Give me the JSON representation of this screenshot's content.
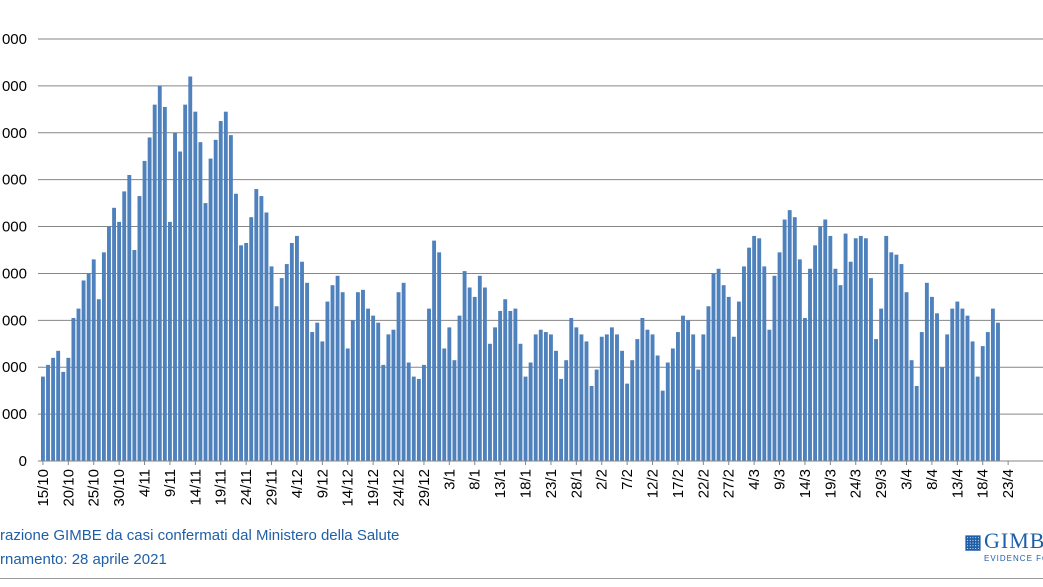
{
  "footer": {
    "source": "razione GIMBE da casi confermati dal Ministero della Salute",
    "updated": "rnamento: 28 aprile 2021"
  },
  "logo": {
    "name": "GIMB",
    "tagline": "EVIDENCE FOR H",
    "icon": "grid-logo-icon"
  },
  "colors": {
    "bar": "#4f81bd",
    "grid": "#868686",
    "text": "#000000",
    "footer": "#1f5fa8"
  },
  "chart_data": {
    "type": "bar",
    "title": "",
    "xlabel": "",
    "ylabel": "",
    "ylim": [
      0,
      9000
    ],
    "y_ticks": [
      0,
      1000,
      2000,
      3000,
      4000,
      5000,
      6000,
      7000,
      8000,
      9000
    ],
    "y_tick_labels": [
      "0",
      "000",
      "000",
      "000",
      "000",
      "000",
      "000",
      "000",
      "000",
      "000"
    ],
    "grid": true,
    "x_tick_labels": [
      "15/10",
      "20/10",
      "25/10",
      "30/10",
      "4/11",
      "9/11",
      "14/11",
      "19/11",
      "24/11",
      "29/11",
      "4/12",
      "9/12",
      "14/12",
      "19/12",
      "24/12",
      "29/12",
      "3/1",
      "8/1",
      "13/1",
      "18/1",
      "23/1",
      "28/1",
      "2/2",
      "7/2",
      "12/2",
      "17/2",
      "22/2",
      "27/2",
      "4/3",
      "9/3",
      "14/3",
      "19/3",
      "24/3",
      "29/3",
      "3/4",
      "8/4",
      "13/4",
      "18/4",
      "23/4"
    ],
    "values": [
      1800,
      2050,
      2200,
      2350,
      1900,
      2200,
      3050,
      3250,
      3850,
      4000,
      4300,
      3450,
      4450,
      5000,
      5400,
      5100,
      5750,
      6100,
      4500,
      5650,
      6400,
      6900,
      7600,
      8000,
      7550,
      5100,
      7000,
      6600,
      7600,
      8200,
      7450,
      6800,
      5500,
      6450,
      6850,
      7250,
      7450,
      6950,
      5700,
      4600,
      4650,
      5200,
      5800,
      5650,
      5300,
      4150,
      3300,
      3900,
      4200,
      4650,
      4800,
      4250,
      3800,
      2750,
      2950,
      2550,
      3400,
      3750,
      3950,
      3600,
      2400,
      3000,
      3600,
      3650,
      3250,
      3100,
      2950,
      2050,
      2700,
      2800,
      3600,
      3800,
      2100,
      1800,
      1750,
      2050,
      3250,
      4700,
      4450,
      2400,
      2850,
      2150,
      3100,
      4050,
      3700,
      3500,
      3950,
      3700,
      2500,
      2850,
      3200,
      3450,
      3200,
      3250,
      2500,
      1800,
      2100,
      2700,
      2800,
      2750,
      2700,
      2350,
      1750,
      2150,
      3050,
      2850,
      2700,
      2550,
      1600,
      1950,
      2650,
      2700,
      2850,
      2700,
      2350,
      1650,
      2150,
      2600,
      3050,
      2800,
      2700,
      2250,
      1500,
      2100,
      2400,
      2750,
      3100,
      3000,
      2700,
      1950,
      2700,
      3300,
      4000,
      4100,
      3750,
      3500,
      2650,
      3400,
      4150,
      4550,
      4800,
      4750,
      4150,
      2800,
      3950,
      4450,
      5150,
      5350,
      5200,
      4300,
      3050,
      4100,
      4600,
      5000,
      5150,
      4800,
      4100,
      3750,
      4850,
      4250,
      4750,
      4800,
      4750,
      3900,
      2600,
      3250,
      4800,
      4450,
      4400,
      4200,
      3600,
      2150,
      1600,
      2750,
      3800,
      3500,
      3150,
      2000,
      2700,
      3250,
      3400,
      3250,
      3100,
      2550,
      1800,
      2450,
      2750,
      3250,
      2950
    ]
  }
}
